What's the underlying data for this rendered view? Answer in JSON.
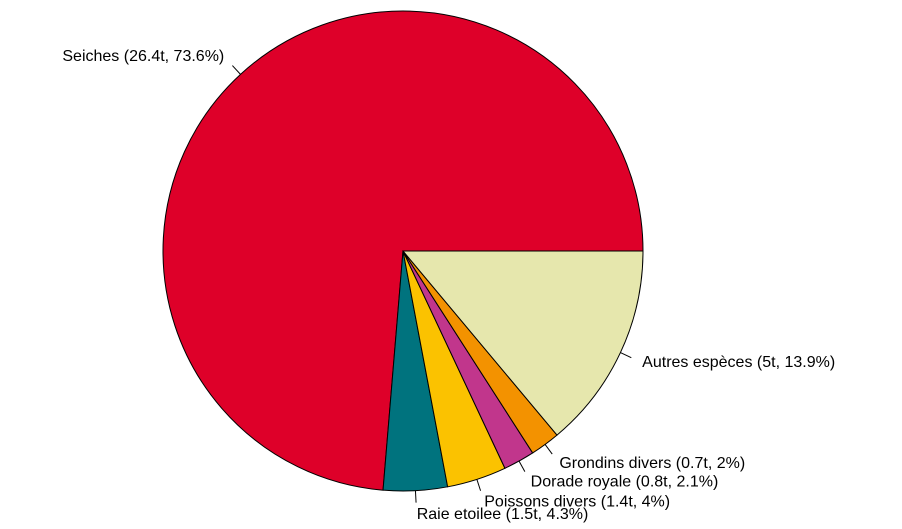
{
  "chart_data": {
    "type": "pie",
    "categories": [
      "Seiches (26.4t, 73.6%)",
      "Raie etoilee (1.5t, 4.3%)",
      "Poissons divers (1.4t, 4%)",
      "Dorade royale (0.8t, 2.1%)",
      "Grondins divers (0.7t, 2%)",
      "Autres espèces (5t, 13.9%)"
    ],
    "values": [
      73.6,
      4.3,
      4,
      2.1,
      2,
      13.9
    ],
    "colors": [
      "#de0029",
      "#00737e",
      "#fbc200",
      "#c1368c",
      "#f39200",
      "#e6e7ad"
    ]
  }
}
